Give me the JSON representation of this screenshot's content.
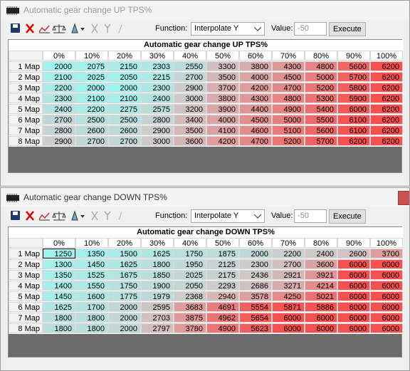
{
  "windows": [
    {
      "title": "Automatic gear change  UP TPS%",
      "toolbar": {
        "function_label": "Function:",
        "function": "Interpolate Y",
        "value_label": "Value:",
        "value": "-50",
        "button": "Execute"
      },
      "table": {
        "title": "Automatic gear change  UP TPS%",
        "columns": [
          "0%",
          "10%",
          "20%",
          "30%",
          "40%",
          "50%",
          "60%",
          "70%",
          "80%",
          "90%",
          "100%"
        ],
        "rows": [
          {
            "label": "1 Map",
            "values": [
              2000,
              2075,
              2150,
              2303,
              2550,
              3300,
              3800,
              4300,
              4800,
              5600,
              6200
            ]
          },
          {
            "label": "2 Map",
            "values": [
              2100,
              2025,
              2050,
              2215,
              2700,
              3500,
              4000,
              4500,
              5000,
              5700,
              6200
            ]
          },
          {
            "label": "3 Map",
            "values": [
              2200,
              2000,
              2000,
              2300,
              2900,
              3700,
              4200,
              4700,
              5200,
              5800,
              6200
            ]
          },
          {
            "label": "4 Map",
            "values": [
              2300,
              2100,
              2100,
              2400,
              3000,
              3800,
              4300,
              4800,
              5300,
              5900,
              6200
            ]
          },
          {
            "label": "5 Map",
            "values": [
              2400,
              2200,
              2275,
              2575,
              3200,
              3900,
              4400,
              4900,
              5400,
              6000,
              6200
            ]
          },
          {
            "label": "6 Map",
            "values": [
              2700,
              2500,
              2500,
              2800,
              3400,
              4000,
              4500,
              5000,
              5500,
              6100,
              6200
            ]
          },
          {
            "label": "7 Map",
            "values": [
              2800,
              2600,
              2600,
              2900,
              3500,
              4100,
              4600,
              5100,
              5600,
              6100,
              6200
            ]
          },
          {
            "label": "8 Map",
            "values": [
              2900,
              2700,
              2700,
              3000,
              3600,
              4200,
              4700,
              5200,
              5700,
              6200,
              6200
            ]
          }
        ]
      }
    },
    {
      "title": "Automatic gear change  DOWN TPS%",
      "toolbar": {
        "function_label": "Function:",
        "function": "Interpolate Y",
        "value_label": "Value:",
        "value": "-50",
        "button": "Execute"
      },
      "table": {
        "title": "Automatic gear change  DOWN TPS%",
        "columns": [
          "0%",
          "10%",
          "20%",
          "30%",
          "40%",
          "50%",
          "60%",
          "70%",
          "80%",
          "90%",
          "100%"
        ],
        "rows": [
          {
            "label": "1 Map",
            "values": [
              1250,
              1350,
              1500,
              1625,
              1750,
              1875,
              2000,
              2200,
              2400,
              2600,
              3700
            ]
          },
          {
            "label": "2 Map",
            "values": [
              1300,
              1450,
              1625,
              1800,
              1950,
              2125,
              2300,
              2700,
              3600,
              6000,
              6000
            ]
          },
          {
            "label": "3 Map",
            "values": [
              1350,
              1525,
              1675,
              1850,
              2025,
              2175,
              2436,
              2921,
              3921,
              6000,
              6000
            ]
          },
          {
            "label": "4 Map",
            "values": [
              1400,
              1550,
              1750,
              1900,
              2050,
              2293,
              2686,
              3271,
              4214,
              6000,
              6000
            ]
          },
          {
            "label": "5 Map",
            "values": [
              1450,
              1600,
              1775,
              1979,
              2368,
              2940,
              3578,
              4250,
              5021,
              6000,
              6000
            ]
          },
          {
            "label": "6 Map",
            "values": [
              1625,
              1700,
              2000,
              2595,
              3683,
              4691,
              5554,
              5871,
              5886,
              6000,
              6000
            ]
          },
          {
            "label": "7 Map",
            "values": [
              1800,
              1800,
              2000,
              2703,
              3875,
              4962,
              5654,
              6000,
              6000,
              6000,
              6000
            ]
          },
          {
            "label": "8 Map",
            "values": [
              1800,
              1800,
              2000,
              2797,
              3780,
              4900,
              5623,
              6000,
              6000,
              6000,
              6000
            ]
          }
        ]
      }
    }
  ]
}
